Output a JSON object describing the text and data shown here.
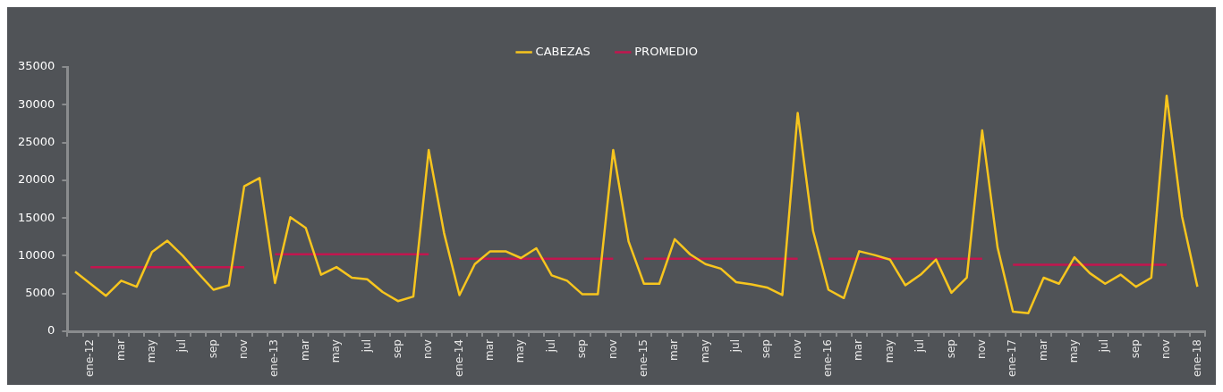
{
  "chart_data": {
    "type": "line",
    "categories": [
      null,
      "ene-12",
      null,
      "mar",
      null,
      "may",
      null,
      "jul",
      null,
      "sep",
      null,
      "nov",
      null,
      "ene-13",
      null,
      "mar",
      null,
      "may",
      null,
      "jul",
      null,
      "sep",
      null,
      "nov",
      null,
      "ene-14",
      null,
      "mar",
      null,
      "may",
      null,
      "jul",
      null,
      "sep",
      null,
      "nov",
      null,
      "ene-15",
      null,
      "mar",
      null,
      "may",
      null,
      "jul",
      null,
      "sep",
      null,
      "nov",
      null,
      "ene-16",
      null,
      "mar",
      null,
      "may",
      null,
      "jul",
      null,
      "sep",
      null,
      "nov",
      null,
      "ene-17",
      null,
      "mar",
      null,
      "may",
      null,
      "jul",
      null,
      "sep",
      null,
      "nov",
      null,
      "ene-18"
    ],
    "series": [
      {
        "name": "CABEZAS",
        "color": "#f7c51e",
        "values": [
          7900,
          6300,
          4700,
          6700,
          5900,
          10500,
          12000,
          10000,
          7700,
          5500,
          6100,
          19200,
          20300,
          6400,
          15100,
          13700,
          7500,
          8500,
          7100,
          6900,
          5200,
          4000,
          4600,
          24000,
          13000,
          4800,
          8900,
          10600,
          10600,
          9700,
          11000,
          7400,
          6700,
          4900,
          4900,
          24000,
          11900,
          6300,
          6300,
          12200,
          10200,
          8900,
          8300,
          6500,
          6200,
          5800,
          4800,
          28900,
          13300,
          5500,
          4400,
          10600,
          10100,
          9500,
          6100,
          7500,
          9500,
          5100,
          7100,
          26600,
          11100,
          2600,
          2400,
          7100,
          6300,
          9800,
          7700,
          6300,
          7500,
          5900,
          7100,
          31200,
          15200,
          5900
        ]
      },
      {
        "name": "PROMEDIO",
        "color": "#c2164f",
        "values": [
          null,
          8500,
          8500,
          8500,
          8500,
          8500,
          8500,
          8500,
          8500,
          8500,
          8500,
          8500,
          null,
          10200,
          10200,
          10200,
          10200,
          10200,
          10200,
          10200,
          10200,
          10200,
          10200,
          10200,
          null,
          9600,
          9600,
          9600,
          9600,
          9600,
          9600,
          9600,
          9600,
          9600,
          9600,
          9600,
          null,
          9600,
          9600,
          9600,
          9600,
          9600,
          9600,
          9600,
          9600,
          9600,
          9600,
          9600,
          null,
          9600,
          9600,
          9600,
          9600,
          9600,
          9600,
          9600,
          9600,
          9600,
          9600,
          9600,
          null,
          8800,
          8800,
          8800,
          8800,
          8800,
          8800,
          8800,
          8800,
          8800,
          8800,
          8800,
          null,
          null
        ]
      }
    ],
    "ylim": [
      0,
      35000
    ],
    "yticks": [
      0,
      5000,
      10000,
      15000,
      20000,
      25000,
      30000,
      35000
    ],
    "grid": false,
    "legend": "top",
    "marker": "none",
    "line_style": "solid"
  }
}
